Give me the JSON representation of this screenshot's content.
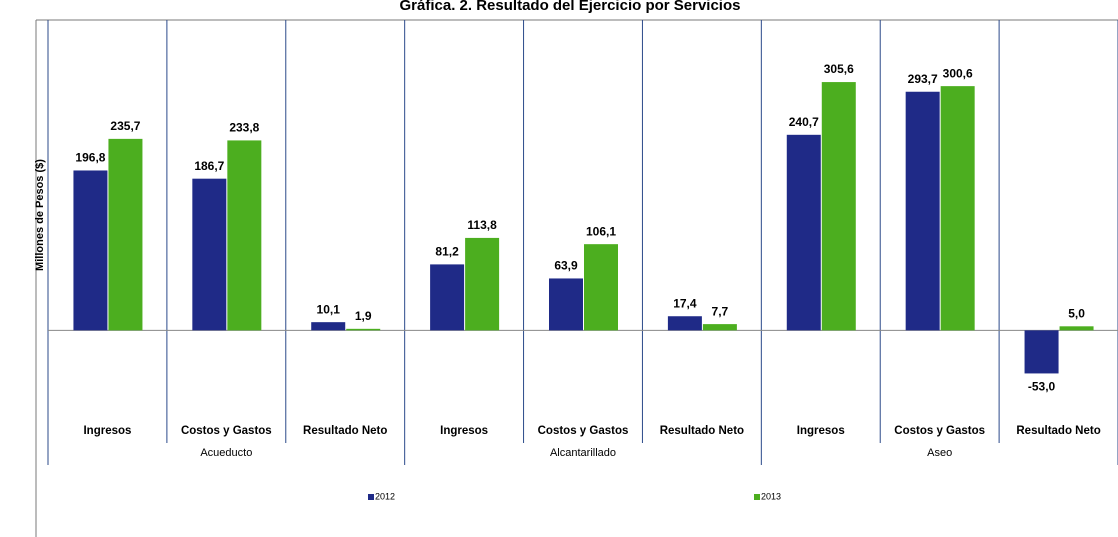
{
  "chart_data": {
    "type": "bar",
    "title": "Gráfica. 2. Resultado del Ejercicio por Servicios",
    "y_label": "Millones de Pesos ($)",
    "categories": [
      "Ingresos",
      "Costos y Gastos",
      "Resultado Neto",
      "Ingresos",
      "Costos y Gastos",
      "Resultado Neto",
      "Ingresos",
      "Costos y Gastos",
      "Resultado Neto"
    ],
    "groups": [
      "Acueducto",
      "Alcantarillado",
      "Aseo"
    ],
    "series": [
      {
        "name": "2012",
        "color": "#1f2a87",
        "values": [
          196.8,
          186.7,
          10.1,
          81.2,
          63.9,
          17.4,
          240.7,
          293.7,
          -53.0
        ],
        "value_labels": [
          "196,8",
          "186,7",
          "10,1",
          "81,2",
          "63,9",
          "17,4",
          "240,7",
          "293,7",
          "-53,0"
        ]
      },
      {
        "name": "2013",
        "color": "#4cae1f",
        "values": [
          235.7,
          233.8,
          1.9,
          113.8,
          106.1,
          7.7,
          305.6,
          300.6,
          5.0
        ],
        "value_labels": [
          "235,7",
          "233,8",
          "1,9",
          "113,8",
          "106,1",
          "7,7",
          "305,6",
          "300,6",
          "5,0"
        ]
      }
    ],
    "ylim": [
      -98,
      382
    ]
  }
}
